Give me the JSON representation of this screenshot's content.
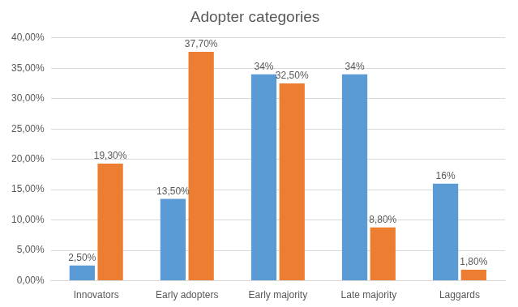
{
  "chart_data": {
    "type": "bar",
    "title": "Adopter categories",
    "categories": [
      "Innovators",
      "Early adopters",
      "Early majority",
      "Late majority",
      "Laggards"
    ],
    "series": [
      {
        "color": "#5b9bd5",
        "values": [
          2.5,
          13.5,
          34,
          34,
          16
        ],
        "value_labels": [
          "2,50%",
          "13,50%",
          "34%",
          "34%",
          "16%"
        ]
      },
      {
        "color": "#ed7d31",
        "values": [
          19.3,
          37.7,
          32.5,
          8.8,
          1.8
        ],
        "value_labels": [
          "19,30%",
          "37,70%",
          "32,50%",
          "8,80%",
          "1,80%"
        ]
      }
    ],
    "ylim": [
      0,
      40
    ],
    "yticks": [
      {
        "value": 0,
        "label": "0,00%"
      },
      {
        "value": 5,
        "label": "5,00%"
      },
      {
        "value": 10,
        "label": "10,00%"
      },
      {
        "value": 15,
        "label": "15,00%"
      },
      {
        "value": 20,
        "label": "20,00%"
      },
      {
        "value": 25,
        "label": "25,00%"
      },
      {
        "value": 30,
        "label": "30,00%"
      },
      {
        "value": 35,
        "label": "35,00%"
      },
      {
        "value": 40,
        "label": "40,00%"
      }
    ],
    "grid": true,
    "data_labels": true
  }
}
